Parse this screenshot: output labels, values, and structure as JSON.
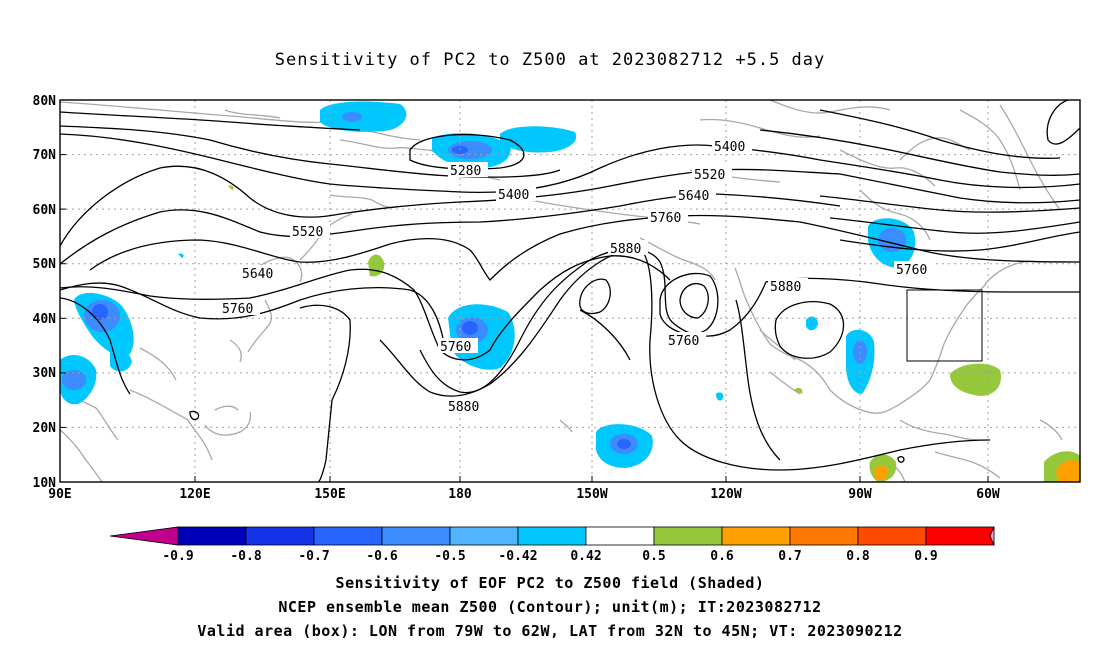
{
  "title": "Sensitivity of PC2 to Z500 at 2023082712 +5.5 day",
  "lat_labels": [
    "80N",
    "70N",
    "60N",
    "50N",
    "40N",
    "30N",
    "20N",
    "10N"
  ],
  "lon_labels": [
    "90E",
    "120E",
    "150E",
    "180",
    "150W",
    "120W",
    "90W",
    "60W"
  ],
  "contour_labels": {
    "c5280": "5280",
    "c5400a": "5400",
    "c5400b": "5400",
    "c5520a": "5520",
    "c5520b": "5520",
    "c5640a": "5640",
    "c5640b": "5640",
    "c5760a": "5760",
    "c5760b": "5760",
    "c5760c": "5760",
    "c5760d": "5760",
    "c5760e": "5760",
    "c5880a": "5880",
    "c5880b": "5880",
    "c5880c": "5880"
  },
  "colorbar": {
    "labels": [
      "-0.9",
      "-0.8",
      "-0.7",
      "-0.6",
      "-0.5",
      "-0.42",
      "0.42",
      "0.5",
      "0.6",
      "0.7",
      "0.8",
      "0.9"
    ],
    "colors": [
      "#c0008c",
      "#0000b8",
      "#1432e6",
      "#2864ff",
      "#3c8cff",
      "#50b4ff",
      "#00c8ff",
      "#ffffff",
      "#96c83c",
      "#ffa000",
      "#ff7800",
      "#ff4b00",
      "#ff0000",
      "#f0a0c8"
    ]
  },
  "footer": {
    "line1": "Sensitivity of EOF PC2 to Z500 field (Shaded)",
    "line2": "NCEP ensemble mean Z500 (Contour); unit(m); IT:2023082712",
    "line3": "Valid area (box): LON from 79W to 62W, LAT from 32N to 45N; VT: 2023090212"
  }
}
